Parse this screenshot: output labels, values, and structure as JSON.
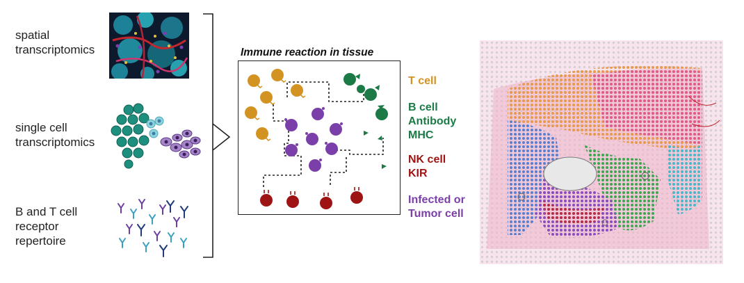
{
  "left_labels": {
    "spatial": [
      "spatial",
      "transcriptomics"
    ],
    "single_cell": [
      "single cell",
      "transcriptomics"
    ],
    "receptor": [
      "B and T cell",
      "receptor",
      "repertoire"
    ]
  },
  "panel": {
    "title": "Immune reaction in tissue"
  },
  "legend": {
    "t_cell": {
      "lines": [
        "T cell"
      ],
      "color": "#d39323"
    },
    "b_cell": {
      "lines": [
        "B cell",
        "Antibody",
        "MHC"
      ],
      "color": "#1c7a47"
    },
    "nk_cell": {
      "lines": [
        "NK cell",
        "KIR"
      ],
      "color": "#9e1414"
    },
    "infected": {
      "lines": [
        "Infected or",
        "Tumor cell"
      ],
      "color": "#7a3fa8"
    }
  }
}
